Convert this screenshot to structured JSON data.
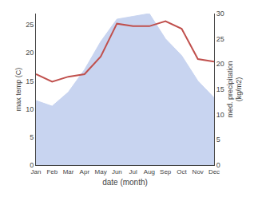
{
  "chart_data": {
    "type": "area",
    "xlabel": "date (month)",
    "ylabel": "max temp (C)",
    "y2label": "med. precipitation\n(kg/m2)",
    "categories": [
      "Jan",
      "Feb",
      "Mar",
      "Apr",
      "May",
      "Jun",
      "Jul",
      "Aug",
      "Sep",
      "Oct",
      "Nov",
      "Dec"
    ],
    "series": [
      {
        "type": "area",
        "color": "#c8d4f0",
        "values": [
          11.5,
          10.5,
          13.0,
          17.0,
          22.0,
          26.0,
          26.5,
          27.0,
          22.5,
          19.5,
          15.0,
          12.0
        ]
      },
      {
        "type": "line",
        "color": "#c0504d",
        "axis": "y2",
        "values": [
          18.0,
          16.5,
          17.5,
          18.0,
          21.5,
          28.0,
          27.5,
          27.5,
          28.5,
          27.0,
          21.0,
          20.5
        ]
      }
    ],
    "ylim": [
      0,
      27
    ],
    "yticks": [
      0,
      5,
      10,
      15,
      20,
      25
    ],
    "y2lim": [
      0,
      30
    ],
    "y2ticks": [
      0,
      5,
      10,
      15,
      20,
      25,
      30
    ],
    "grid": false
  }
}
